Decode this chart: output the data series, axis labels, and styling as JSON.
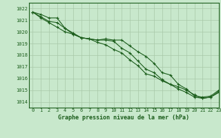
{
  "title": "Graphe pression niveau de la mer (hPa)",
  "xlim": [
    -0.5,
    23
  ],
  "ylim": [
    1013.5,
    1022.5
  ],
  "yticks": [
    1014,
    1015,
    1016,
    1017,
    1018,
    1019,
    1020,
    1021,
    1022
  ],
  "xticks": [
    0,
    1,
    2,
    3,
    4,
    5,
    6,
    7,
    8,
    9,
    10,
    11,
    12,
    13,
    14,
    15,
    16,
    17,
    18,
    19,
    20,
    21,
    22,
    23
  ],
  "bg_color": "#c8e8cc",
  "line_color": "#1a5c1a",
  "grid_color": "#a8c8a8",
  "line1": [
    1021.7,
    1021.5,
    1021.2,
    1021.2,
    1020.3,
    1019.8,
    1019.5,
    1019.4,
    1019.3,
    1019.4,
    1019.3,
    1019.3,
    1018.8,
    1018.3,
    1017.9,
    1017.3,
    1016.5,
    1016.3,
    1015.5,
    1015.1,
    1014.5,
    1014.4,
    1014.5,
    1015.0
  ],
  "line2": [
    1021.7,
    1021.3,
    1020.9,
    1020.8,
    1020.3,
    1019.9,
    1019.5,
    1019.4,
    1019.3,
    1019.3,
    1019.2,
    1018.6,
    1018.2,
    1017.5,
    1016.8,
    1016.5,
    1015.9,
    1015.5,
    1015.1,
    1014.8,
    1014.4,
    1014.3,
    1014.4,
    1014.8
  ],
  "line3": [
    1021.7,
    1021.2,
    1020.8,
    1020.4,
    1020.0,
    1019.8,
    1019.5,
    1019.4,
    1019.1,
    1018.9,
    1018.5,
    1018.2,
    1017.6,
    1017.1,
    1016.4,
    1016.2,
    1015.8,
    1015.5,
    1015.3,
    1015.0,
    1014.6,
    1014.3,
    1014.4,
    1014.9
  ],
  "tick_fontsize": 5.0,
  "label_fontsize": 6.0
}
